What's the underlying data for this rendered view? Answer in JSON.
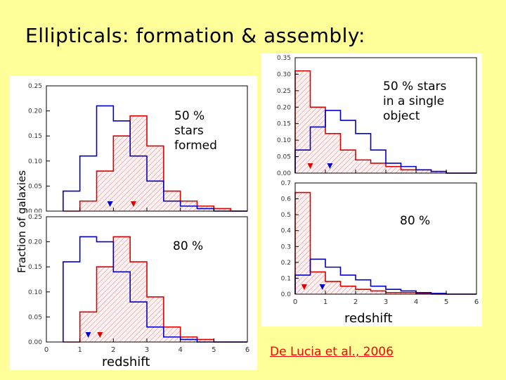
{
  "slide": {
    "title": "Ellipticals: formation & assembly:",
    "ylabel": "Fraction of galaxies",
    "xlabel_left": "redshift",
    "xlabel_right": "redshift",
    "citation": "De Lucia et al., 2006",
    "annotations": {
      "left_top": [
        "50 %",
        "stars",
        "formed"
      ],
      "left_bottom": "80 %",
      "right_top": [
        "50 % stars",
        "in a single",
        "object"
      ],
      "right_bottom": "80 %"
    }
  },
  "colors": {
    "background": "#ffff99",
    "series_red": "#dd0000",
    "series_blue": "#0000cc",
    "citation": "#ff0000"
  },
  "chart_data": [
    {
      "type": "histogram",
      "panel": "left-top",
      "xlim": [
        0,
        6
      ],
      "ylim": [
        0,
        0.25
      ],
      "ytick_labels": [
        "0.00",
        "0.05",
        "0.10",
        "0.15",
        "0.20",
        "0.25"
      ],
      "x_edges": [
        0.5,
        1.0,
        1.5,
        2.0,
        2.5,
        3.0,
        3.5,
        4.0,
        4.5,
        5.0,
        5.5,
        6.0
      ],
      "series": [
        {
          "color": "red",
          "values": [
            0.0,
            0.02,
            0.08,
            0.15,
            0.19,
            0.13,
            0.04,
            0.02,
            0.01,
            0.005,
            0.0
          ]
        },
        {
          "color": "blue",
          "values": [
            0.04,
            0.11,
            0.21,
            0.18,
            0.11,
            0.06,
            0.02,
            0.01,
            0.005,
            0.0,
            0.0
          ]
        }
      ],
      "markers": [
        {
          "color": "blue",
          "x": 1.9
        },
        {
          "color": "red",
          "x": 2.6
        }
      ]
    },
    {
      "type": "histogram",
      "panel": "left-bottom",
      "xlim": [
        0,
        6
      ],
      "ylim": [
        0,
        0.25
      ],
      "ytick_labels": [
        "0.00",
        "0.05",
        "0.10",
        "0.15",
        "0.20",
        "0.25"
      ],
      "xtick_labels": [
        "0",
        "1",
        "2",
        "3",
        "4",
        "5",
        "6"
      ],
      "x_edges": [
        0.5,
        1.0,
        1.5,
        2.0,
        2.5,
        3.0,
        3.5,
        4.0,
        4.5,
        5.0,
        5.5,
        6.0
      ],
      "series": [
        {
          "color": "red",
          "values": [
            0.0,
            0.06,
            0.15,
            0.21,
            0.16,
            0.09,
            0.03,
            0.01,
            0.005,
            0.0,
            0.0
          ]
        },
        {
          "color": "blue",
          "values": [
            0.16,
            0.21,
            0.2,
            0.14,
            0.08,
            0.03,
            0.01,
            0.005,
            0.0,
            0.0,
            0.0
          ]
        }
      ],
      "markers": [
        {
          "color": "blue",
          "x": 1.25
        },
        {
          "color": "red",
          "x": 1.6
        }
      ]
    },
    {
      "type": "histogram",
      "panel": "right-top",
      "xlim": [
        0,
        6
      ],
      "ylim": [
        0,
        0.35
      ],
      "ytick_labels": [
        "0.00",
        "0.05",
        "0.10",
        "0.15",
        "0.20",
        "0.25",
        "0.30",
        "0.35"
      ],
      "x_edges": [
        0.0,
        0.5,
        1.0,
        1.5,
        2.0,
        2.5,
        3.0,
        3.5,
        4.0,
        4.5,
        5.0,
        5.5,
        6.0
      ],
      "series": [
        {
          "color": "red",
          "values": [
            0.31,
            0.2,
            0.12,
            0.07,
            0.04,
            0.03,
            0.02,
            0.01,
            0.01,
            0.005,
            0.0,
            0.0
          ]
        },
        {
          "color": "blue",
          "values": [
            0.07,
            0.14,
            0.19,
            0.16,
            0.12,
            0.07,
            0.03,
            0.02,
            0.01,
            0.005,
            0.0,
            0.0
          ]
        }
      ],
      "markers": [
        {
          "color": "red",
          "x": 0.5
        },
        {
          "color": "blue",
          "x": 1.15
        }
      ]
    },
    {
      "type": "histogram",
      "panel": "right-bottom",
      "xlim": [
        0,
        6
      ],
      "ylim": [
        0,
        0.7
      ],
      "ytick_labels": [
        "0.0",
        "0.1",
        "0.2",
        "0.3",
        "0.4",
        "0.5",
        "0.6",
        "0.7"
      ],
      "xtick_labels": [
        "0",
        "1",
        "2",
        "3",
        "4",
        "5",
        "6"
      ],
      "x_edges": [
        0.0,
        0.5,
        1.0,
        1.5,
        2.0,
        2.5,
        3.0,
        3.5,
        4.0,
        4.5,
        5.0,
        5.5,
        6.0
      ],
      "series": [
        {
          "color": "red",
          "values": [
            0.64,
            0.14,
            0.08,
            0.05,
            0.03,
            0.02,
            0.01,
            0.01,
            0.005,
            0.0,
            0.0,
            0.0
          ]
        },
        {
          "color": "blue",
          "values": [
            0.12,
            0.22,
            0.17,
            0.12,
            0.09,
            0.05,
            0.03,
            0.02,
            0.01,
            0.005,
            0.0,
            0.0
          ]
        }
      ],
      "markers": [
        {
          "color": "red",
          "x": 0.3
        },
        {
          "color": "blue",
          "x": 0.9
        }
      ]
    }
  ]
}
